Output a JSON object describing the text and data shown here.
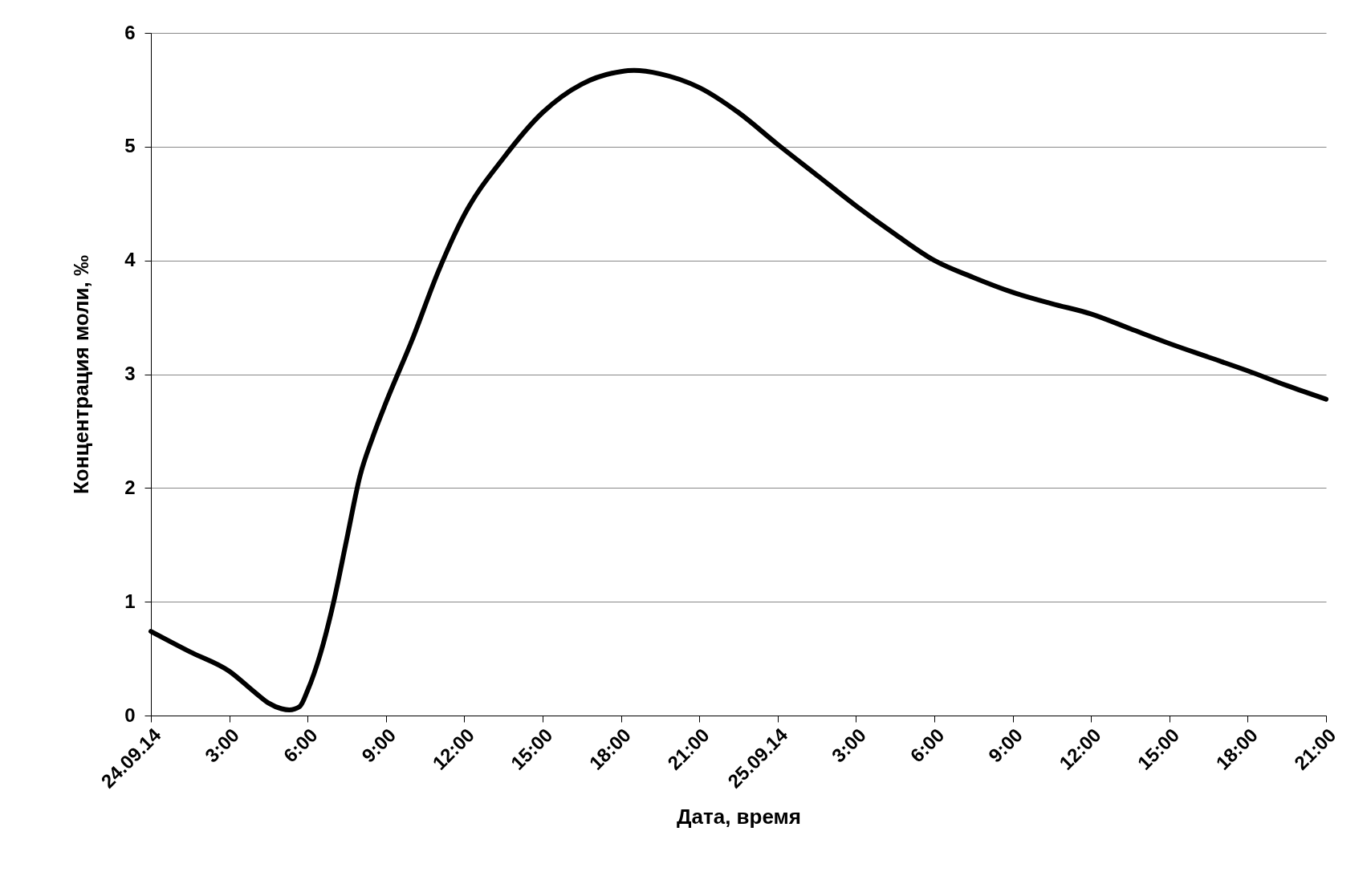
{
  "chart_data": {
    "type": "line",
    "xlabel": "Дата, время",
    "ylabel": "Концентрация моли, ‰",
    "x": [
      "--09-24T00:00",
      "--09-24T01:30",
      "--09-24T03:00",
      "--09-24T04:00",
      "--09-24T04:30",
      "--09-24T05:00",
      "--09-24T05:18",
      "--09-24T05:42",
      "--09-24T06:00",
      "--09-24T06:30",
      "--09-24T07:00",
      "--09-24T07:30",
      "--09-24T08:00",
      "--09-24T08:30",
      "--09-24T09:00",
      "--09-24T10:00",
      "--09-24T11:00",
      "--09-24T12:00",
      "--09-24T13:30",
      "--09-24T15:00",
      "--09-24T16:30",
      "--09-24T18:00",
      "--09-24T18:30",
      "--09-24T19:30",
      "--09-24T21:00",
      "--09-24T22:30",
      "--09-25T00:00",
      "--09-25T01:30",
      "--09-25T03:00",
      "--09-25T04:30",
      "--09-25T06:00",
      "--09-25T07:30",
      "--09-25T09:00",
      "--09-25T10:30",
      "--09-25T12:00",
      "--09-25T13:30",
      "--09-25T15:00",
      "--09-25T16:30",
      "--09-25T18:00",
      "--09-25T19:30",
      "--09-25T21:00"
    ],
    "series": [
      {
        "color": "#000000",
        "values": [
          0.74,
          0.56,
          0.39,
          0.2,
          0.11,
          0.06,
          0.05,
          0.08,
          0.22,
          0.55,
          1.0,
          1.55,
          2.1,
          2.45,
          2.75,
          3.3,
          3.9,
          4.4,
          4.9,
          5.3,
          5.55,
          5.66,
          5.67,
          5.64,
          5.52,
          5.3,
          5.02,
          4.75,
          4.48,
          4.23,
          4.0,
          3.85,
          3.72,
          3.62,
          3.53,
          3.4,
          3.27,
          3.15,
          3.03,
          2.9,
          2.78
        ]
      }
    ],
    "xlim": [
      "--09-24T00:00",
      "--09-25T21:00"
    ],
    "xticks": [
      {
        "value": "--09-24T00:00",
        "label": "24.09.14"
      },
      {
        "value": "--09-24T03:00",
        "label": "3:00"
      },
      {
        "value": "--09-24T06:00",
        "label": "6:00"
      },
      {
        "value": "--09-24T09:00",
        "label": "9:00"
      },
      {
        "value": "--09-24T12:00",
        "label": "12:00"
      },
      {
        "value": "--09-24T15:00",
        "label": "15:00"
      },
      {
        "value": "--09-24T18:00",
        "label": "18:00"
      },
      {
        "value": "--09-24T21:00",
        "label": "21:00"
      },
      {
        "value": "--09-25T00:00",
        "label": "25.09.14"
      },
      {
        "value": "--09-25T03:00",
        "label": "3:00"
      },
      {
        "value": "--09-25T06:00",
        "label": "6:00"
      },
      {
        "value": "--09-25T09:00",
        "label": "9:00"
      },
      {
        "value": "--09-25T12:00",
        "label": "12:00"
      },
      {
        "value": "--09-25T15:00",
        "label": "15:00"
      },
      {
        "value": "--09-25T18:00",
        "label": "18:00"
      },
      {
        "value": "--09-25T21:00",
        "label": "21:00"
      }
    ],
    "ylim": [
      0,
      6
    ],
    "yticks": [
      0,
      1,
      2,
      3,
      4,
      5,
      6
    ],
    "grid": "y",
    "marker": "none",
    "line_style": "solid"
  }
}
